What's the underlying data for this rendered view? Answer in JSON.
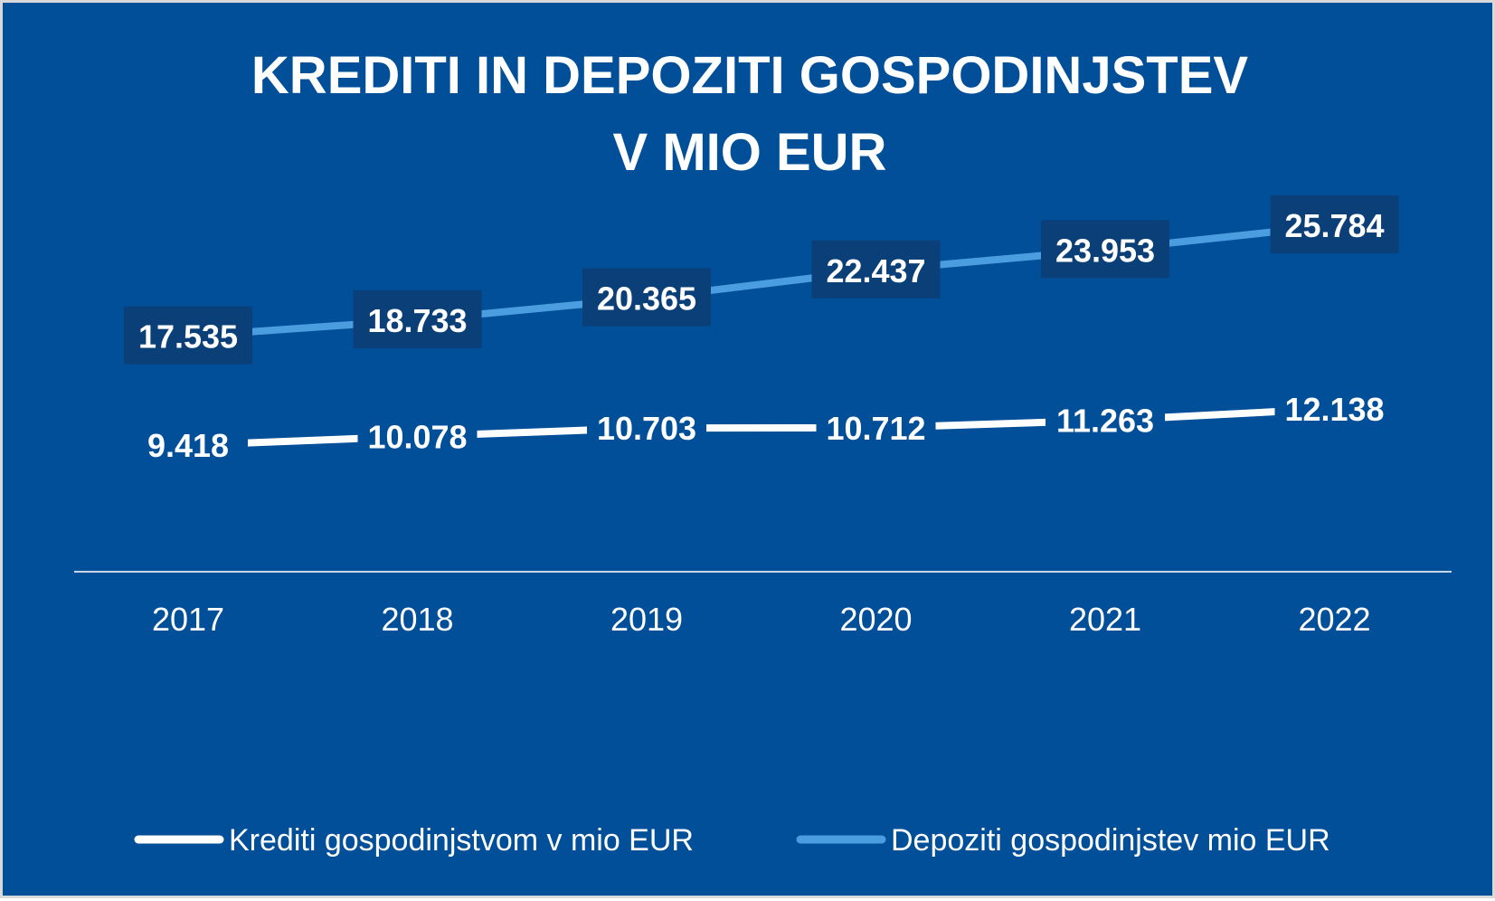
{
  "chart_data": {
    "type": "line",
    "title": "KREDITI IN DEPOZITI GOSPODINJSTEV",
    "subtitle": "V MIO EUR",
    "categories": [
      "2017",
      "2018",
      "2019",
      "2020",
      "2021",
      "2022"
    ],
    "series": [
      {
        "name": "Krediti gospodinjstvom v mio EUR",
        "color": "#ffffff",
        "values": [
          9418,
          10078,
          10703,
          10712,
          11263,
          12138
        ],
        "labels": [
          "9.418",
          "10.078",
          "10.703",
          "10.712",
          "11.263",
          "12.138"
        ],
        "label_style": "plain"
      },
      {
        "name": "Depoziti gospodinjstev mio EUR",
        "color": "#4a9ee0",
        "values": [
          17535,
          18733,
          20365,
          22437,
          23953,
          25784
        ],
        "labels": [
          "17.535",
          "18.733",
          "20.365",
          "22.437",
          "23.953",
          "25.784"
        ],
        "label_style": "boxed"
      }
    ],
    "grid": false,
    "legend_position": "bottom",
    "background_color": "#004f98",
    "label_box_color": "#0a3f78"
  }
}
